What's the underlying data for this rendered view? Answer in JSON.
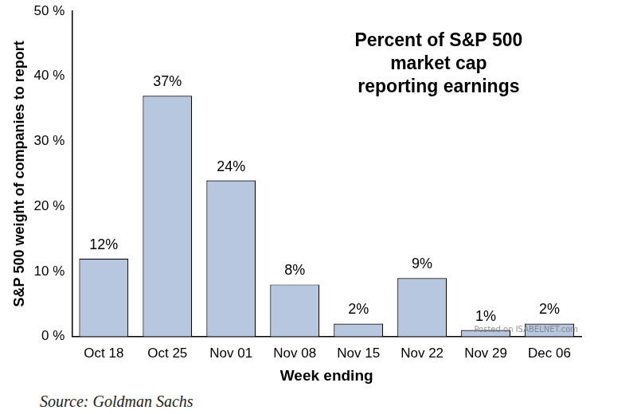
{
  "chart_data": {
    "type": "bar",
    "title": [
      "Percent of S&P 500",
      "market cap",
      "reporting earnings"
    ],
    "x_label": "Week ending",
    "y_label": "S&P 500 weight of companies to report",
    "source": "Source: Goldman Sachs",
    "watermark": "Posted on ISABELNET.com",
    "categories": [
      "Oct 18",
      "Oct 25",
      "Nov 01",
      "Nov 08",
      "Nov 15",
      "Nov 22",
      "Nov 29",
      "Dec 06"
    ],
    "values": [
      12,
      37,
      24,
      8,
      2,
      9,
      1,
      2
    ],
    "value_labels": [
      "12%",
      "37%",
      "24%",
      "8%",
      "2%",
      "9%",
      "1%",
      "2%"
    ],
    "data_labels": true,
    "color": "#b8c7e0",
    "ylim": [
      0,
      50
    ],
    "yticks": [
      {
        "value": 0,
        "label": "0 %"
      },
      {
        "value": 10,
        "label": "10 %"
      },
      {
        "value": 20,
        "label": "20 %"
      },
      {
        "value": 30,
        "label": "30 %"
      },
      {
        "value": 40,
        "label": "40 %"
      },
      {
        "value": 50,
        "label": "50 %"
      }
    ],
    "grid": false
  }
}
